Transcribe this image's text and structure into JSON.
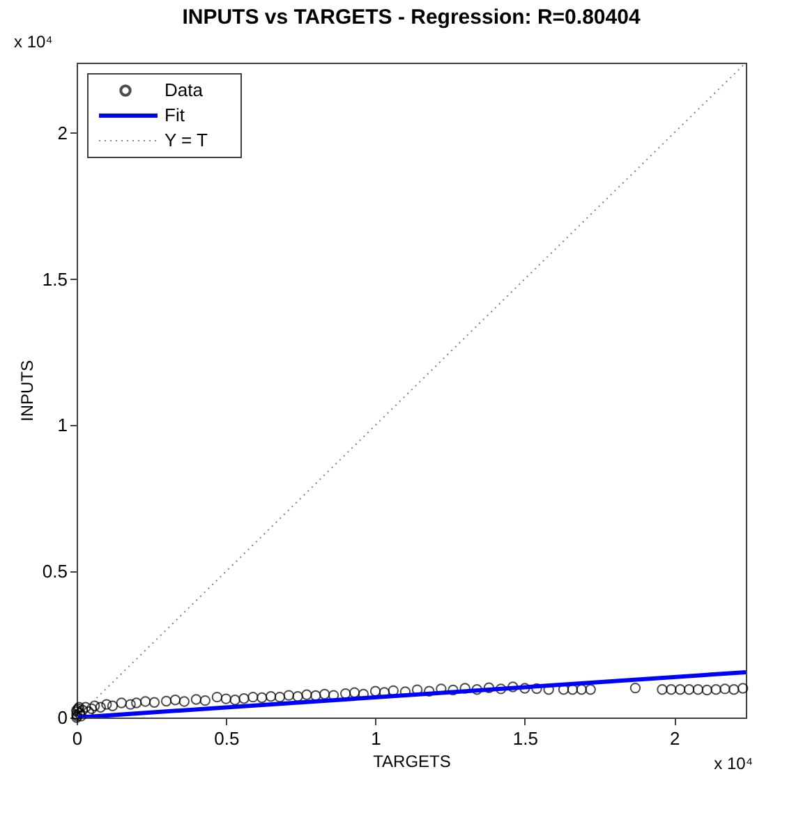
{
  "chart_data": {
    "type": "scatter",
    "title": "INPUTS vs TARGETS -  Regression: R=0.80404",
    "xlabel": "TARGETS",
    "ylabel": "INPUTS",
    "annotations": [
      "x 10⁴",
      "x 10⁴"
    ],
    "xlim": [
      0,
      2.24
    ],
    "ylim": [
      0,
      2.24
    ],
    "xticks": [
      0,
      0.5,
      1,
      1.5,
      2
    ],
    "yticks": [
      0,
      0.5,
      1,
      1.5,
      2
    ],
    "grid": false,
    "legend": "top left",
    "series": [
      {
        "name": "Data",
        "marker": "circle",
        "color": "#000000",
        "x": [
          0,
          0,
          0,
          0,
          0.002,
          0.005,
          0.008,
          0.01,
          0.015,
          0.02,
          0.03,
          0.04,
          0.05,
          0.06,
          0.08,
          0.1,
          0.12,
          0.15,
          0.18,
          0.2,
          0.23,
          0.26,
          0.3,
          0.33,
          0.36,
          0.4,
          0.43,
          0.47,
          0.5,
          0.53,
          0.56,
          0.59,
          0.62,
          0.65,
          0.68,
          0.71,
          0.74,
          0.77,
          0.8,
          0.83,
          0.86,
          0.9,
          0.93,
          0.96,
          1.0,
          1.03,
          1.06,
          1.1,
          1.14,
          1.18,
          1.22,
          1.26,
          1.3,
          1.34,
          1.38,
          1.42,
          1.46,
          1.5,
          1.54,
          1.58,
          1.63,
          1.66,
          1.69,
          1.72,
          1.87,
          1.96,
          1.99,
          2.02,
          2.05,
          2.08,
          2.11,
          2.14,
          2.17,
          2.2,
          2.23
        ],
        "values": [
          0,
          0.01,
          0.02,
          0.025,
          0.005,
          0.03,
          0.035,
          0.015,
          0.005,
          0.025,
          0.035,
          0.02,
          0.03,
          0.04,
          0.035,
          0.045,
          0.04,
          0.05,
          0.045,
          0.05,
          0.055,
          0.052,
          0.056,
          0.06,
          0.055,
          0.062,
          0.058,
          0.07,
          0.064,
          0.06,
          0.065,
          0.07,
          0.068,
          0.072,
          0.07,
          0.076,
          0.072,
          0.078,
          0.075,
          0.08,
          0.076,
          0.082,
          0.085,
          0.08,
          0.09,
          0.086,
          0.092,
          0.088,
          0.095,
          0.09,
          0.098,
          0.094,
          0.1,
          0.096,
          0.102,
          0.098,
          0.105,
          0.1,
          0.099,
          0.096,
          0.096,
          0.096,
          0.096,
          0.096,
          0.101,
          0.096,
          0.096,
          0.096,
          0.096,
          0.096,
          0.094,
          0.096,
          0.098,
          0.096,
          0.1
        ]
      },
      {
        "name": "Fit",
        "type": "line",
        "line_style": "solid",
        "color": "#0000ff",
        "x": [
          0,
          2.24
        ],
        "values": [
          0,
          0.155
        ]
      },
      {
        "name": "Y = T",
        "type": "line",
        "line_style": "dotted",
        "color": "#808080",
        "x": [
          0,
          2.24
        ],
        "values": [
          0,
          2.24
        ]
      }
    ]
  }
}
